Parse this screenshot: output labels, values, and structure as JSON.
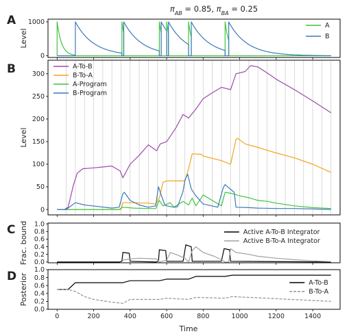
{
  "figure": {
    "title_parts": [
      {
        "text": "π",
        "style": "italic"
      },
      {
        "text": "AB",
        "style": "sub"
      },
      {
        "text": " = 0.85, ",
        "style": "normal"
      },
      {
        "text": "π",
        "style": "italic"
      },
      {
        "text": "BA",
        "style": "sub"
      },
      {
        "text": " = 0.25",
        "style": "normal"
      }
    ],
    "xlabel": "Time",
    "x_ticks": [
      "0",
      "200",
      "400",
      "600",
      "800",
      "1000",
      "1200",
      "1400"
    ]
  },
  "panel_letters": [
    "A",
    "B",
    "C",
    "D"
  ],
  "colors": {
    "purple": "#9a4aa8",
    "orange": "#f5a21b",
    "green": "#3cc43c",
    "blue": "#3a78b8",
    "black": "#000000",
    "gray": "#a0a0a0",
    "dashed_gray": "#909090",
    "vline": "#d0d0d0"
  },
  "chart_data": [
    {
      "panel": "A",
      "type": "line",
      "ylabel": "Level",
      "xlim": [
        -50,
        1550
      ],
      "ylim": [
        -50,
        1080
      ],
      "y_ticks": [
        0,
        1000
      ],
      "legend": [
        "A",
        "B"
      ],
      "legend_position": "upper right",
      "series": [
        {
          "name": "A",
          "color": "green",
          "kind": "sawtooth",
          "intervals": [
            [
              0,
              100
            ],
            [
              355,
              365
            ],
            [
              560,
              570
            ],
            [
              600,
              610
            ],
            [
              720,
              735
            ],
            [
              920,
              940
            ]
          ],
          "peak": 1000,
          "tau": 25
        },
        {
          "name": "B",
          "color": "blue",
          "kind": "sawtooth",
          "intervals": [
            [
              100,
              355
            ],
            [
              365,
              560
            ],
            [
              570,
              600
            ],
            [
              610,
              720
            ],
            [
              735,
              920
            ],
            [
              940,
              1500
            ]
          ],
          "peak": 1000,
          "tau": 100
        }
      ]
    },
    {
      "panel": "B",
      "type": "line",
      "ylabel": "Level",
      "xlim": [
        -50,
        1550
      ],
      "ylim": [
        -12,
        330
      ],
      "y_ticks": [
        0,
        50,
        100,
        150,
        200,
        250,
        300
      ],
      "legend": [
        "A-To-B",
        "B-To-A",
        "A-Program",
        "B-Program"
      ],
      "legend_position": "upper left",
      "vertical_line_spacing": 50,
      "series": [
        {
          "name": "A-To-B",
          "color": "purple",
          "x": [
            0,
            40,
            60,
            90,
            110,
            140,
            200,
            250,
            300,
            345,
            360,
            400,
            450,
            500,
            545,
            565,
            600,
            650,
            690,
            720,
            760,
            800,
            850,
            900,
            950,
            980,
            1030,
            1060,
            1090,
            1100,
            1150,
            1200,
            1300,
            1400,
            1500
          ],
          "y": [
            0,
            0,
            5,
            55,
            80,
            90,
            92,
            94,
            96,
            85,
            70,
            100,
            120,
            143,
            130,
            145,
            150,
            180,
            210,
            202,
            222,
            245,
            258,
            270,
            265,
            300,
            305,
            318,
            316,
            315,
            302,
            288,
            265,
            240,
            214
          ]
        },
        {
          "name": "B-To-A",
          "color": "orange",
          "x": [
            0,
            300,
            350,
            360,
            365,
            400,
            500,
            540,
            560,
            580,
            600,
            700,
            720,
            740,
            790,
            800,
            900,
            950,
            980,
            990,
            1030,
            1100,
            1200,
            1300,
            1400,
            1500
          ],
          "y": [
            0,
            0,
            0,
            15,
            15,
            15,
            14,
            12,
            25,
            60,
            63,
            63,
            90,
            123,
            122,
            118,
            108,
            100,
            155,
            157,
            145,
            137,
            125,
            114,
            100,
            82
          ]
        },
        {
          "name": "A-Program",
          "color": "green",
          "x": [
            0,
            100,
            200,
            340,
            360,
            420,
            500,
            540,
            560,
            580,
            620,
            640,
            690,
            720,
            740,
            760,
            800,
            850,
            900,
            920,
            960,
            1000,
            1050,
            1100,
            1150,
            1200,
            1300,
            1400,
            1500
          ],
          "y": [
            0,
            0,
            0,
            0,
            5,
            3,
            2,
            2,
            20,
            8,
            15,
            5,
            18,
            10,
            25,
            8,
            32,
            20,
            8,
            38,
            35,
            30,
            26,
            20,
            18,
            14,
            8,
            4,
            2
          ]
        },
        {
          "name": "B-Program",
          "color": "blue",
          "x": [
            0,
            50,
            60,
            100,
            150,
            300,
            340,
            360,
            368,
            400,
            450,
            500,
            540,
            555,
            560,
            565,
            590,
            600,
            640,
            660,
            690,
            700,
            715,
            735,
            760,
            800,
            880,
            910,
            920,
            940,
            970,
            980,
            1050,
            1100,
            1200,
            1300,
            1400,
            1500
          ],
          "y": [
            0,
            0,
            3,
            15,
            10,
            3,
            5,
            35,
            38,
            20,
            10,
            5,
            8,
            50,
            45,
            38,
            10,
            8,
            5,
            6,
            40,
            65,
            78,
            45,
            30,
            12,
            5,
            48,
            55,
            48,
            38,
            5,
            4,
            3,
            2,
            2,
            1,
            0
          ]
        }
      ]
    },
    {
      "panel": "C",
      "type": "line",
      "ylabel": "Frac. bound",
      "xlim": [
        -50,
        1550
      ],
      "ylim": [
        -0.02,
        1.02
      ],
      "y_ticks": [
        "0.0",
        "0.2",
        "0.4",
        "0.6",
        "0.8",
        "1.0"
      ],
      "legend": [
        "Active A-To-B Integrator",
        "Active B-To-A Integrator"
      ],
      "legend_position": "right",
      "series": [
        {
          "name": "Active A-To-B Integrator",
          "color": "black",
          "x": [
            0,
            340,
            355,
            360,
            395,
            400,
            540,
            555,
            560,
            595,
            600,
            690,
            705,
            735,
            740,
            900,
            915,
            945,
            950,
            1500
          ],
          "y": [
            0,
            0,
            0.02,
            0.25,
            0.23,
            0.02,
            0,
            0.02,
            0.32,
            0.3,
            0.02,
            0.02,
            0.45,
            0.4,
            0.02,
            0.02,
            0.35,
            0.32,
            0.02,
            0
          ]
        },
        {
          "name": "Active B-To-A Integrator",
          "color": "gray",
          "x": [
            360,
            400,
            450,
            500,
            545,
            560,
            600,
            620,
            650,
            700,
            720,
            740,
            760,
            800,
            860,
            900,
            920,
            940,
            950,
            980,
            1050,
            1100,
            1200,
            1300,
            1400,
            1500
          ],
          "y": [
            0.05,
            0.08,
            0.1,
            0.09,
            0.08,
            0,
            0.05,
            0.25,
            0.2,
            0.1,
            0,
            0.3,
            0.4,
            0.25,
            0.15,
            0.06,
            0,
            0,
            0.35,
            0.25,
            0.2,
            0.15,
            0.1,
            0.06,
            0.03,
            0.01
          ]
        }
      ]
    },
    {
      "panel": "D",
      "type": "line",
      "ylabel": "Posterior",
      "xlim": [
        -50,
        1550
      ],
      "ylim": [
        0.0,
        1.0
      ],
      "y_ticks": [
        "0.0",
        "0.2",
        "0.4",
        "0.6",
        "0.8",
        "1.0"
      ],
      "legend": [
        "A-To-B",
        "B-To-A"
      ],
      "legend_position": "right",
      "series": [
        {
          "name": "A-To-B",
          "color": "black",
          "dash": false,
          "x": [
            0,
            60,
            100,
            360,
            400,
            560,
            600,
            720,
            760,
            920,
            960,
            1500
          ],
          "y": [
            0.5,
            0.5,
            0.67,
            0.67,
            0.72,
            0.72,
            0.76,
            0.76,
            0.83,
            0.83,
            0.86,
            0.86
          ]
        },
        {
          "name": "B-To-A",
          "color": "dashed_gray",
          "dash": true,
          "x": [
            0,
            60,
            100,
            150,
            200,
            300,
            360,
            400,
            560,
            600,
            720,
            760,
            920,
            960,
            1500
          ],
          "y": [
            0.5,
            0.5,
            0.45,
            0.32,
            0.25,
            0.18,
            0.15,
            0.25,
            0.25,
            0.28,
            0.25,
            0.3,
            0.28,
            0.32,
            0.2
          ]
        }
      ]
    }
  ]
}
